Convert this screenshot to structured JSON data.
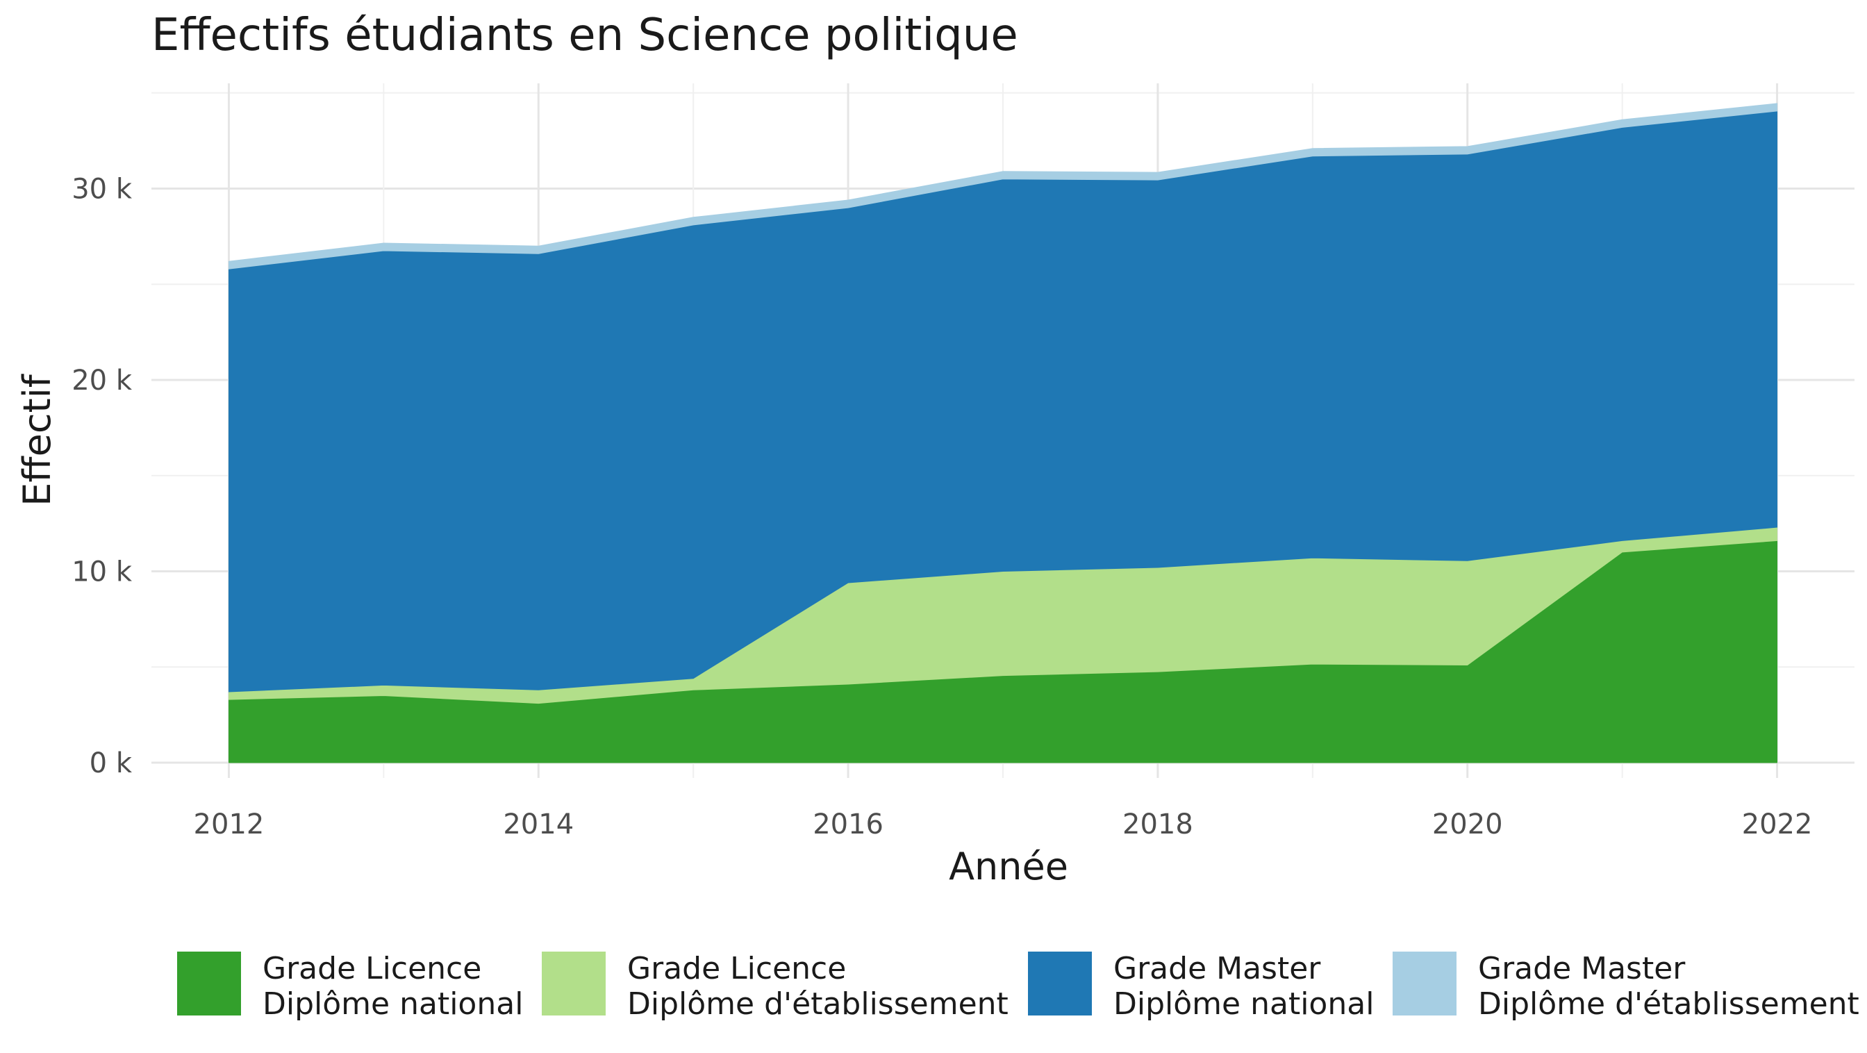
{
  "chart_data": {
    "type": "area",
    "stacked": true,
    "title": "Effectifs étudiants en Science politique",
    "xlabel": "Année",
    "ylabel": "Effectif",
    "x": [
      2012,
      2013,
      2014,
      2015,
      2016,
      2017,
      2018,
      2019,
      2020,
      2021,
      2022
    ],
    "x_ticks": [
      "2012",
      "2014",
      "2016",
      "2018",
      "2020",
      "2022"
    ],
    "y_ticks": [
      "0 k",
      "10 k",
      "20 k",
      "30 k"
    ],
    "xlim": [
      2011.5,
      2022.5
    ],
    "ylim": [
      -800,
      35500
    ],
    "grid": true,
    "legend_position": "bottom",
    "series": [
      {
        "name": "Grade Licence\nDiplôme national",
        "name_line1": "Grade Licence",
        "name_line2": "Diplôme national",
        "color": "#33a02c",
        "values": [
          3300,
          3500,
          3100,
          3800,
          4100,
          4550,
          4750,
          5150,
          5100,
          11000,
          11600
        ]
      },
      {
        "name": "Grade Licence\nDiplôme d'établissement",
        "name_line1": "Grade Licence",
        "name_line2": "Diplôme d'établissement",
        "color": "#b2df8a",
        "values": [
          400,
          550,
          700,
          600,
          5300,
          5450,
          5450,
          5550,
          5450,
          600,
          700
        ]
      },
      {
        "name": "Grade Master\nDiplôme national",
        "name_line1": "Grade Master",
        "name_line2": "Diplôme national",
        "color": "#1f78b4",
        "values": [
          22100,
          22700,
          22800,
          23700,
          19600,
          20500,
          20250,
          21000,
          21250,
          21600,
          21750
        ]
      },
      {
        "name": "Grade Master\nDiplôme d'établissement",
        "name_line1": "Grade Master",
        "name_line2": "Diplôme d'établissement",
        "color": "#a6cee3",
        "values": [
          400,
          400,
          400,
          400,
          400,
          400,
          400,
          400,
          400,
          400,
          400
        ]
      }
    ]
  }
}
